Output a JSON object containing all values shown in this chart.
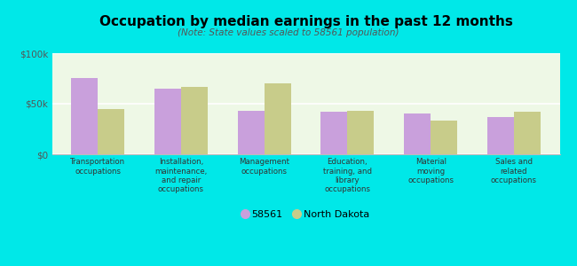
{
  "title": "Occupation by median earnings in the past 12 months",
  "subtitle": "(Note: State values scaled to 58561 population)",
  "categories": [
    "Transportation\noccupations",
    "Installation,\nmaintenance,\nand repair\noccupations",
    "Management\noccupations",
    "Education,\ntraining, and\nlibrary\noccupations",
    "Material\nmoving\noccupations",
    "Sales and\nrelated\noccupations"
  ],
  "values_58561": [
    75000,
    65000,
    43000,
    42000,
    40000,
    37000
  ],
  "values_nd": [
    45000,
    67000,
    70000,
    43000,
    33000,
    42000
  ],
  "color_58561": "#c9a0dc",
  "color_nd": "#c8cc8a",
  "background_color": "#00e8e8",
  "plot_bg_color": "#eef8e6",
  "ylim": [
    0,
    100000
  ],
  "yticks": [
    0,
    50000,
    100000
  ],
  "ytick_labels": [
    "$0",
    "$50k",
    "$100k"
  ],
  "legend_58561": "58561",
  "legend_nd": "North Dakota",
  "bar_width": 0.32
}
